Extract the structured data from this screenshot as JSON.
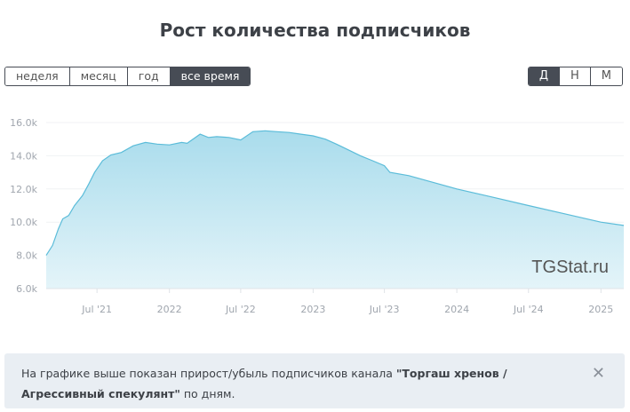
{
  "title": "Рост количества подписчиков",
  "period_buttons": [
    {
      "label": "неделя",
      "active": false
    },
    {
      "label": "месяц",
      "active": false
    },
    {
      "label": "год",
      "active": false
    },
    {
      "label": "все время",
      "active": true
    }
  ],
  "granularity_buttons": [
    {
      "label": "Д",
      "active": true
    },
    {
      "label": "Н",
      "active": false
    },
    {
      "label": "М",
      "active": false
    }
  ],
  "watermark": "TGStat.ru",
  "info": {
    "text_before": "На графике выше показан прирост/убыль подписчиков канала ",
    "channel": "\"Торгаш хренов / Агрессивный спекулянт\"",
    "text_after": " по дням.",
    "close_icon": "close-icon"
  },
  "chart_data": {
    "type": "area",
    "title": "",
    "xlabel": "",
    "ylabel": "",
    "x_range": [
      "2021-02-22",
      "2025-02-28"
    ],
    "ylim": [
      6000,
      16000
    ],
    "grid": true,
    "legend": "none",
    "fill_color": "#a9dcec",
    "line_color": "#5bbcd9",
    "y_ticks": [
      {
        "value": 6000,
        "label": "6.0k"
      },
      {
        "value": 8000,
        "label": "8.0k"
      },
      {
        "value": 10000,
        "label": "10.0k"
      },
      {
        "value": 12000,
        "label": "12.0k"
      },
      {
        "value": 14000,
        "label": "14.0k"
      },
      {
        "value": 16000,
        "label": "16.0k"
      }
    ],
    "x_ticks": [
      {
        "date": "2021-07-01",
        "label": "Jul '21"
      },
      {
        "date": "2022-01-01",
        "label": "2022"
      },
      {
        "date": "2022-07-01",
        "label": "Jul '22"
      },
      {
        "date": "2023-01-01",
        "label": "2023"
      },
      {
        "date": "2023-07-01",
        "label": "Jul '23"
      },
      {
        "date": "2024-01-01",
        "label": "2024"
      },
      {
        "date": "2024-07-01",
        "label": "Jul '24"
      },
      {
        "date": "2025-01-01",
        "label": "2025"
      }
    ],
    "points": [
      [
        "2021-02-22",
        8000
      ],
      [
        "2021-03-10",
        8600
      ],
      [
        "2021-03-25",
        9600
      ],
      [
        "2021-04-05",
        10200
      ],
      [
        "2021-04-20",
        10400
      ],
      [
        "2021-05-05",
        11000
      ],
      [
        "2021-05-25",
        11600
      ],
      [
        "2021-06-10",
        12300
      ],
      [
        "2021-06-25",
        13000
      ],
      [
        "2021-07-15",
        13700
      ],
      [
        "2021-08-05",
        14050
      ],
      [
        "2021-09-01",
        14200
      ],
      [
        "2021-10-01",
        14600
      ],
      [
        "2021-11-01",
        14800
      ],
      [
        "2021-12-01",
        14700
      ],
      [
        "2022-01-01",
        14650
      ],
      [
        "2022-02-01",
        14800
      ],
      [
        "2022-02-15",
        14750
      ],
      [
        "2022-03-20",
        15300
      ],
      [
        "2022-04-10",
        15100
      ],
      [
        "2022-05-01",
        15150
      ],
      [
        "2022-06-01",
        15100
      ],
      [
        "2022-07-01",
        14950
      ],
      [
        "2022-08-01",
        15450
      ],
      [
        "2022-09-01",
        15500
      ],
      [
        "2022-10-01",
        15450
      ],
      [
        "2022-11-01",
        15400
      ],
      [
        "2022-12-01",
        15300
      ],
      [
        "2023-01-01",
        15200
      ],
      [
        "2023-02-01",
        15000
      ],
      [
        "2023-03-01",
        14700
      ],
      [
        "2023-04-01",
        14350
      ],
      [
        "2023-05-01",
        14000
      ],
      [
        "2023-06-01",
        13700
      ],
      [
        "2023-07-01",
        13400
      ],
      [
        "2023-07-15",
        13000
      ],
      [
        "2023-09-01",
        12800
      ],
      [
        "2023-11-01",
        12400
      ],
      [
        "2024-01-01",
        12000
      ],
      [
        "2024-04-01",
        11500
      ],
      [
        "2024-07-01",
        11000
      ],
      [
        "2024-10-01",
        10500
      ],
      [
        "2025-01-01",
        10000
      ],
      [
        "2025-02-28",
        9800
      ]
    ]
  }
}
